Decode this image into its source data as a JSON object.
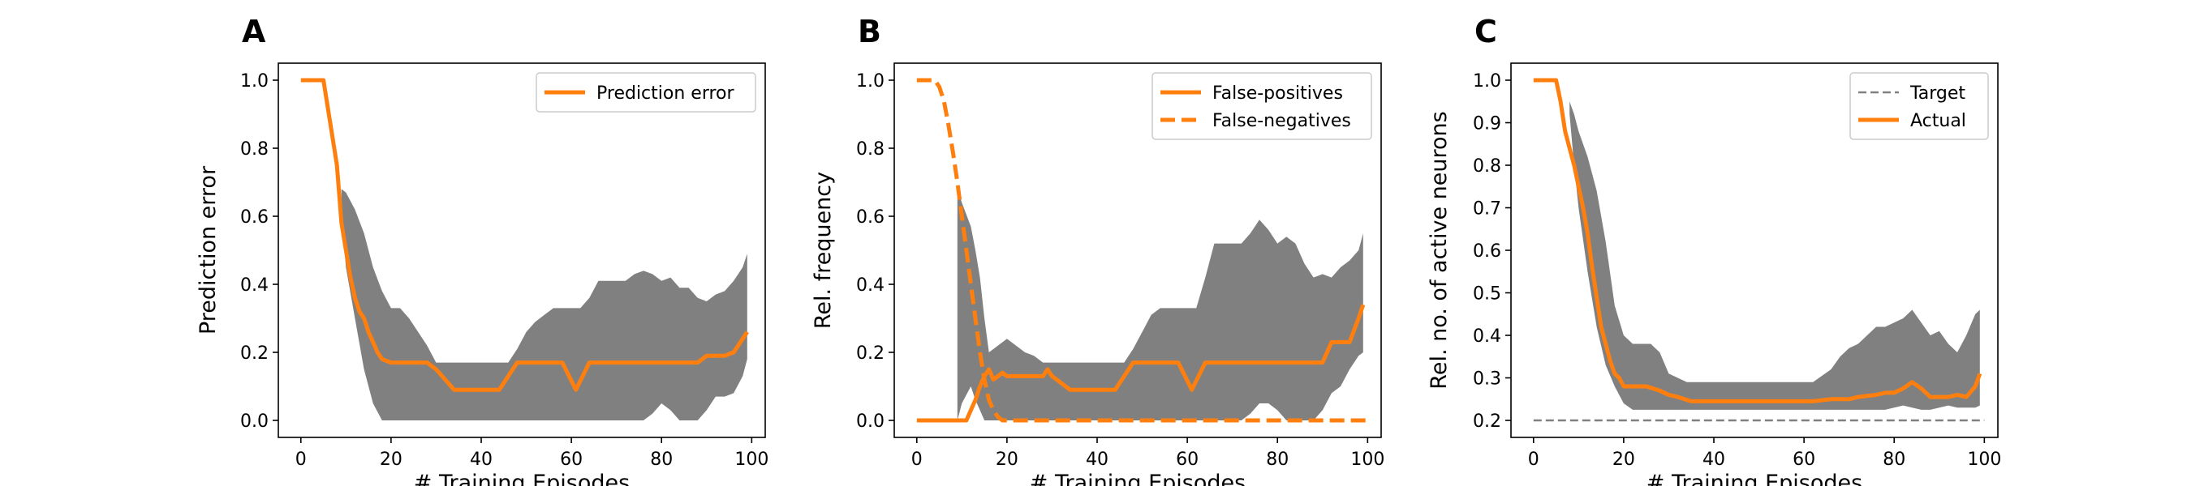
{
  "chart_data": [
    {
      "panel": "A",
      "type": "line",
      "xlabel": "# Training Episodes",
      "ylabel": "Prediction error",
      "xlim": [
        -5,
        103
      ],
      "ylim": [
        -0.05,
        1.05
      ],
      "xticks": [
        "0",
        "20",
        "40",
        "60",
        "80",
        "100"
      ],
      "yticks": [
        "0.0",
        "0.2",
        "0.4",
        "0.6",
        "0.8",
        "1.0"
      ],
      "xtick_values": [
        0,
        20,
        40,
        60,
        80,
        100
      ],
      "ytick_values": [
        0.0,
        0.2,
        0.4,
        0.6,
        0.8,
        1.0
      ],
      "legend_position": "upper right",
      "band_color": "#808080",
      "series": [
        {
          "name": "Prediction error",
          "color": "#ff7f0e",
          "dash": "solid",
          "x": [
            0,
            5,
            8,
            9,
            10,
            11,
            12,
            13,
            14,
            15,
            16,
            17,
            18,
            20,
            25,
            28,
            30,
            32,
            34,
            40,
            44,
            48,
            55,
            58,
            61,
            64,
            70,
            80,
            88,
            90,
            92,
            94,
            96,
            98,
            99
          ],
          "y": [
            1.0,
            1.0,
            0.75,
            0.58,
            0.5,
            0.42,
            0.36,
            0.32,
            0.3,
            0.26,
            0.23,
            0.2,
            0.18,
            0.17,
            0.17,
            0.17,
            0.15,
            0.12,
            0.09,
            0.09,
            0.09,
            0.17,
            0.17,
            0.17,
            0.09,
            0.17,
            0.17,
            0.17,
            0.17,
            0.19,
            0.19,
            0.19,
            0.2,
            0.24,
            0.26
          ]
        }
      ],
      "band": {
        "x": [
          9,
          10,
          12,
          14,
          16,
          18,
          20,
          22,
          24,
          26,
          28,
          30,
          32,
          34,
          40,
          46,
          48,
          50,
          52,
          54,
          56,
          58,
          60,
          62,
          64,
          66,
          68,
          70,
          72,
          74,
          76,
          78,
          80,
          82,
          84,
          86,
          88,
          90,
          92,
          94,
          96,
          98,
          99
        ],
        "upper": [
          0.68,
          0.67,
          0.62,
          0.55,
          0.45,
          0.38,
          0.33,
          0.33,
          0.3,
          0.26,
          0.22,
          0.17,
          0.17,
          0.17,
          0.17,
          0.17,
          0.21,
          0.26,
          0.29,
          0.31,
          0.33,
          0.33,
          0.33,
          0.33,
          0.36,
          0.41,
          0.41,
          0.41,
          0.41,
          0.43,
          0.44,
          0.43,
          0.41,
          0.42,
          0.39,
          0.39,
          0.36,
          0.35,
          0.37,
          0.38,
          0.41,
          0.45,
          0.49
        ],
        "lower": [
          0.6,
          0.45,
          0.3,
          0.15,
          0.05,
          0.0,
          0.0,
          0.0,
          0.0,
          0.0,
          0.0,
          0.0,
          0.0,
          0.0,
          0.0,
          0.0,
          0.0,
          0.0,
          0.0,
          0.0,
          0.0,
          0.0,
          0.0,
          0.0,
          0.0,
          0.0,
          0.0,
          0.0,
          0.0,
          0.0,
          0.0,
          0.02,
          0.05,
          0.03,
          0.0,
          0.0,
          0.0,
          0.03,
          0.07,
          0.07,
          0.08,
          0.13,
          0.18
        ]
      }
    },
    {
      "panel": "B",
      "type": "line",
      "xlabel": "# Training Episodes",
      "ylabel": "Rel. frequency",
      "xlim": [
        -5,
        103
      ],
      "ylim": [
        -0.05,
        1.05
      ],
      "xticks": [
        "0",
        "20",
        "40",
        "60",
        "80",
        "100"
      ],
      "yticks": [
        "0.0",
        "0.2",
        "0.4",
        "0.6",
        "0.8",
        "1.0"
      ],
      "xtick_values": [
        0,
        20,
        40,
        60,
        80,
        100
      ],
      "ytick_values": [
        0.0,
        0.2,
        0.4,
        0.6,
        0.8,
        1.0
      ],
      "legend_position": "upper right",
      "band_color": "#808080",
      "series": [
        {
          "name": "False-positives",
          "color": "#ff7f0e",
          "dash": "solid",
          "x": [
            0,
            11,
            12,
            13,
            14,
            15,
            16,
            17,
            18,
            19,
            20,
            22,
            28,
            29,
            30,
            32,
            34,
            36,
            40,
            44,
            48,
            55,
            58,
            61,
            64,
            70,
            80,
            88,
            90,
            92,
            94,
            96,
            98,
            99
          ],
          "y": [
            0.0,
            0.0,
            0.03,
            0.06,
            0.1,
            0.13,
            0.15,
            0.12,
            0.13,
            0.14,
            0.13,
            0.13,
            0.13,
            0.15,
            0.13,
            0.11,
            0.09,
            0.09,
            0.09,
            0.09,
            0.17,
            0.17,
            0.17,
            0.09,
            0.17,
            0.17,
            0.17,
            0.17,
            0.17,
            0.23,
            0.23,
            0.23,
            0.3,
            0.34
          ]
        },
        {
          "name": "False-negatives",
          "color": "#ff7f0e",
          "dash": "dashed",
          "x": [
            0,
            4,
            5,
            6,
            7,
            8,
            9,
            10,
            11,
            12,
            13,
            14,
            15,
            16,
            17,
            18,
            19,
            20,
            22,
            40,
            60,
            80,
            100
          ],
          "y": [
            1.0,
            1.0,
            0.98,
            0.94,
            0.87,
            0.79,
            0.7,
            0.6,
            0.5,
            0.4,
            0.3,
            0.2,
            0.12,
            0.06,
            0.03,
            0.01,
            0.0,
            0.0,
            0.0,
            0.0,
            0.0,
            0.0,
            0.0
          ]
        }
      ],
      "band": {
        "x": [
          9,
          10,
          12,
          13,
          14,
          15,
          16,
          18,
          20,
          22,
          24,
          26,
          28,
          30,
          32,
          34,
          40,
          46,
          48,
          50,
          52,
          54,
          56,
          58,
          60,
          62,
          64,
          66,
          68,
          70,
          72,
          74,
          76,
          78,
          80,
          82,
          84,
          86,
          88,
          90,
          92,
          94,
          96,
          98,
          99
        ],
        "upper": [
          0.68,
          0.64,
          0.57,
          0.5,
          0.42,
          0.3,
          0.2,
          0.22,
          0.24,
          0.22,
          0.2,
          0.19,
          0.17,
          0.17,
          0.17,
          0.17,
          0.17,
          0.17,
          0.21,
          0.26,
          0.31,
          0.33,
          0.33,
          0.33,
          0.33,
          0.33,
          0.42,
          0.52,
          0.52,
          0.52,
          0.52,
          0.55,
          0.59,
          0.56,
          0.52,
          0.54,
          0.52,
          0.46,
          0.42,
          0.43,
          0.42,
          0.45,
          0.47,
          0.5,
          0.55
        ],
        "lower": [
          0.0,
          0.05,
          0.1,
          0.06,
          0.03,
          0.0,
          0.0,
          0.0,
          0.0,
          0.0,
          0.0,
          0.0,
          0.0,
          0.0,
          0.0,
          0.0,
          0.0,
          0.0,
          0.0,
          0.0,
          0.0,
          0.0,
          0.0,
          0.0,
          0.0,
          0.0,
          0.0,
          0.0,
          0.0,
          0.0,
          0.0,
          0.02,
          0.05,
          0.05,
          0.03,
          0.0,
          0.0,
          0.0,
          0.0,
          0.03,
          0.08,
          0.1,
          0.15,
          0.19,
          0.2
        ]
      }
    },
    {
      "panel": "C",
      "type": "line",
      "xlabel": "# Training Episodes",
      "ylabel": "Rel. no. of active neurons",
      "xlim": [
        -5,
        103
      ],
      "ylim": [
        0.16,
        1.04
      ],
      "xticks": [
        "0",
        "20",
        "40",
        "60",
        "80",
        "100"
      ],
      "yticks": [
        "0.2",
        "0.3",
        "0.4",
        "0.5",
        "0.6",
        "0.7",
        "0.8",
        "0.9",
        "1.0"
      ],
      "xtick_values": [
        0,
        20,
        40,
        60,
        80,
        100
      ],
      "ytick_values": [
        0.2,
        0.3,
        0.4,
        0.5,
        0.6,
        0.7,
        0.8,
        0.9,
        1.0
      ],
      "legend_position": "upper right",
      "band_color": "#808080",
      "series": [
        {
          "name": "Target",
          "color": "#808080",
          "dash": "dashed",
          "x": [
            0,
            100
          ],
          "y": [
            0.2,
            0.2
          ]
        },
        {
          "name": "Actual",
          "color": "#ff7f0e",
          "dash": "solid",
          "x": [
            0,
            5,
            6,
            7,
            8,
            9,
            10,
            11,
            12,
            13,
            14,
            15,
            16,
            17,
            18,
            19,
            20,
            21,
            22,
            25,
            28,
            30,
            32,
            35,
            40,
            45,
            50,
            55,
            60,
            62,
            66,
            70,
            72,
            76,
            78,
            80,
            82,
            84,
            86,
            88,
            90,
            92,
            94,
            96,
            98,
            99
          ],
          "y": [
            1.0,
            1.0,
            0.95,
            0.88,
            0.84,
            0.8,
            0.75,
            0.7,
            0.64,
            0.56,
            0.49,
            0.42,
            0.38,
            0.34,
            0.31,
            0.3,
            0.28,
            0.28,
            0.28,
            0.28,
            0.27,
            0.26,
            0.255,
            0.245,
            0.245,
            0.245,
            0.245,
            0.245,
            0.245,
            0.245,
            0.25,
            0.25,
            0.255,
            0.26,
            0.265,
            0.265,
            0.275,
            0.29,
            0.275,
            0.255,
            0.255,
            0.255,
            0.26,
            0.255,
            0.28,
            0.31
          ]
        }
      ],
      "band": {
        "x": [
          8,
          9,
          10,
          12,
          14,
          16,
          18,
          20,
          22,
          26,
          28,
          30,
          34,
          40,
          50,
          60,
          62,
          66,
          68,
          70,
          72,
          74,
          76,
          78,
          80,
          82,
          84,
          86,
          88,
          90,
          92,
          94,
          96,
          98,
          99
        ],
        "upper": [
          0.95,
          0.92,
          0.88,
          0.82,
          0.74,
          0.62,
          0.47,
          0.4,
          0.38,
          0.38,
          0.36,
          0.31,
          0.29,
          0.29,
          0.29,
          0.29,
          0.29,
          0.32,
          0.35,
          0.37,
          0.38,
          0.4,
          0.42,
          0.42,
          0.43,
          0.44,
          0.46,
          0.43,
          0.4,
          0.41,
          0.38,
          0.36,
          0.4,
          0.45,
          0.46
        ],
        "lower": [
          0.92,
          0.8,
          0.7,
          0.55,
          0.42,
          0.33,
          0.28,
          0.24,
          0.225,
          0.225,
          0.225,
          0.225,
          0.225,
          0.225,
          0.225,
          0.225,
          0.225,
          0.225,
          0.225,
          0.225,
          0.225,
          0.225,
          0.225,
          0.225,
          0.23,
          0.235,
          0.23,
          0.225,
          0.225,
          0.23,
          0.235,
          0.23,
          0.23,
          0.23,
          0.235
        ]
      }
    }
  ]
}
